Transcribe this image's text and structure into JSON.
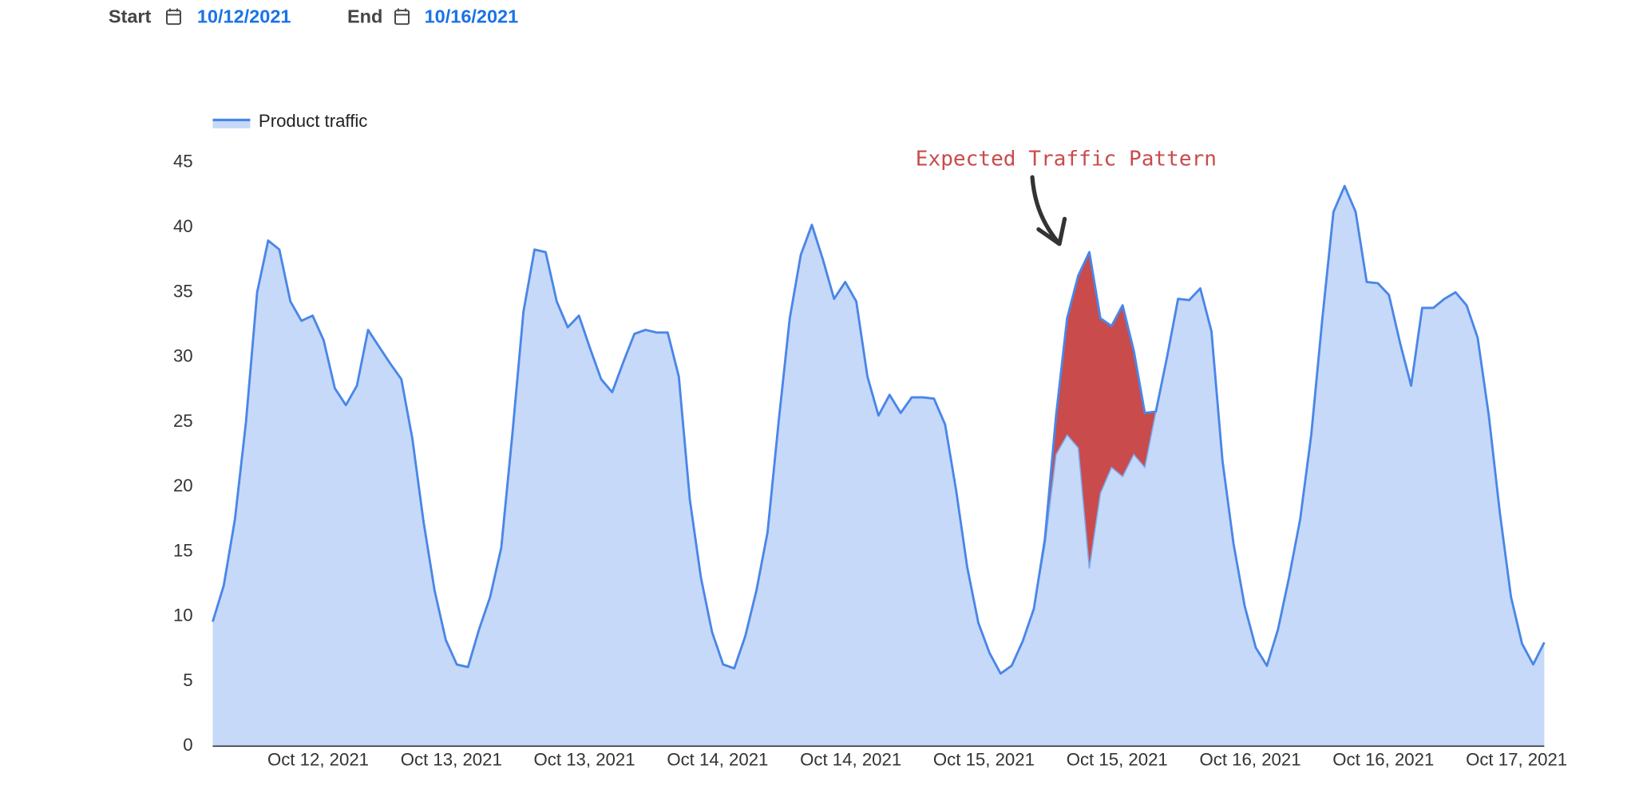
{
  "date_range": {
    "start_label": "Start",
    "start": "10/12/2021",
    "end_label": "End",
    "end": "10/16/2021"
  },
  "chart_data": {
    "type": "area",
    "series": [
      {
        "name": "Product traffic",
        "color": "#4a86e8",
        "fill": "#c6d9f8",
        "values": [
          9.6,
          12.4,
          17.5,
          25,
          35,
          39,
          38.3,
          34.3,
          32.8,
          33.2,
          31.3,
          27.6,
          26.3,
          27.8,
          32.1,
          30.8,
          29.5,
          28.3,
          23.7,
          17.3,
          12,
          8.2,
          6.3,
          6.1,
          9,
          11.5,
          15.3,
          24,
          33.5,
          38.3,
          38.1,
          34.3,
          32.3,
          33.2,
          30.7,
          28.3,
          27.3,
          29.6,
          31.8,
          32.1,
          31.9,
          31.9,
          28.5,
          19,
          13,
          8.8,
          6.3,
          6,
          8.5,
          12,
          16.5,
          25,
          33,
          37.9,
          40.2,
          37.5,
          34.5,
          35.8,
          34.3,
          28.5,
          25.5,
          27.1,
          25.7,
          26.9,
          26.9,
          26.8,
          24.8,
          19.7,
          13.8,
          9.5,
          7.2,
          5.6,
          6.2,
          8.1,
          10.6,
          16,
          25.5,
          33,
          36.3,
          38.1,
          33,
          32.4,
          34,
          30.5,
          25.7,
          25.8,
          30,
          34.5,
          34.4,
          35.3,
          32,
          22,
          15.6,
          10.8,
          7.6,
          6.2,
          9,
          13,
          17.5,
          24,
          33,
          41.2,
          43.2,
          41.2,
          35.8,
          35.7,
          34.8,
          31.1,
          27.8,
          33.8,
          33.8,
          34.5,
          35,
          34,
          31.5,
          25.5,
          18,
          11.5,
          7.9,
          6.3,
          8
        ]
      }
    ],
    "annotation": {
      "text": "Expected Traffic Pattern",
      "color": "#c94b4b",
      "lower": [
        null,
        null,
        null,
        null,
        null,
        null,
        null,
        null,
        null,
        null,
        null,
        null,
        null,
        null,
        null,
        null,
        null,
        null,
        null,
        null,
        null,
        null,
        null,
        null,
        null,
        null,
        null,
        null,
        null,
        null,
        null,
        null,
        null,
        null,
        null,
        null,
        null,
        null,
        null,
        null,
        null,
        null,
        null,
        null,
        null,
        null,
        null,
        null,
        null,
        null,
        null,
        null,
        null,
        null,
        null,
        null,
        null,
        null,
        null,
        null,
        null,
        null,
        null,
        null,
        null,
        null,
        null,
        null,
        null,
        null,
        null,
        null,
        null,
        null,
        10.6,
        15.5,
        22.5,
        24,
        23,
        13.7,
        19.5,
        21.5,
        20.8,
        22.5,
        21.5,
        25.8,
        null,
        null,
        null,
        null,
        null,
        null,
        null,
        null,
        null,
        null,
        null,
        null,
        null,
        null,
        null,
        null,
        null,
        null,
        null,
        null,
        null,
        null,
        null,
        null,
        null,
        null,
        null,
        null,
        null,
        null,
        null,
        null,
        null,
        null,
        null,
        null,
        null,
        null,
        null
      ]
    },
    "xlim": [
      0,
      120
    ],
    "xticks": [
      {
        "value": 9.5,
        "label": "Oct 12, 2021"
      },
      {
        "value": 21.5,
        "label": "Oct 13, 2021"
      },
      {
        "value": 33.5,
        "label": "Oct 13, 2021"
      },
      {
        "value": 45.5,
        "label": "Oct 14, 2021"
      },
      {
        "value": 57.5,
        "label": "Oct 14, 2021"
      },
      {
        "value": 69.5,
        "label": "Oct 15, 2021"
      },
      {
        "value": 81.5,
        "label": "Oct 15, 2021"
      },
      {
        "value": 93.5,
        "label": "Oct 16, 2021"
      },
      {
        "value": 105.5,
        "label": "Oct 16, 2021"
      },
      {
        "value": 117.5,
        "label": "Oct 17, 2021"
      }
    ],
    "ylim": [
      0,
      45
    ],
    "yticks": [
      0,
      5,
      10,
      15,
      20,
      25,
      30,
      35,
      40,
      45
    ],
    "grid": false,
    "legend": "top-left"
  }
}
